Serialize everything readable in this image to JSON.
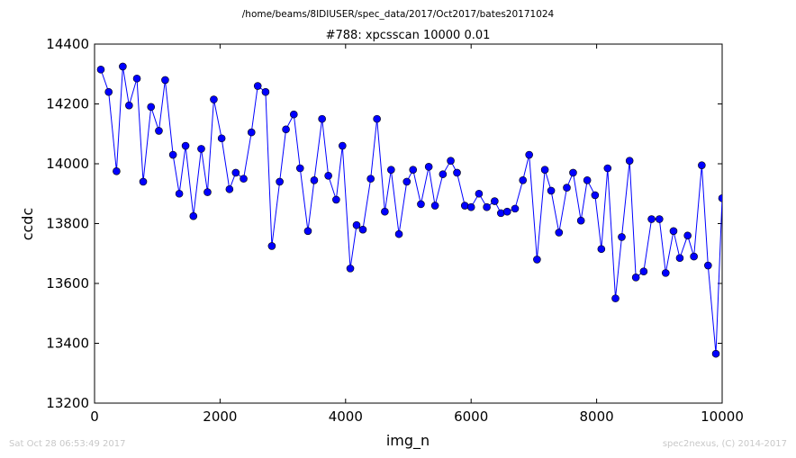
{
  "header": {
    "path": "/home/beams/8IDIUSER/spec_data/2017/Oct2017/bates20171024"
  },
  "footer": {
    "timestamp": "Sat Oct 28 06:53:49 2017",
    "credit": "spec2nexus, (C) 2014-2017"
  },
  "chart_data": {
    "type": "line",
    "title": "#788: xpcsscan 10000 0.01",
    "xlabel": "img_n",
    "ylabel": "ccdc",
    "xlim": [
      0,
      10000
    ],
    "ylim": [
      13200,
      14400
    ],
    "xticks": [
      0,
      2000,
      4000,
      6000,
      8000,
      10000
    ],
    "yticks": [
      13200,
      13400,
      13600,
      13800,
      14000,
      14200,
      14400
    ],
    "grid": false,
    "legend": "none",
    "colors": {
      "line": "#0000ff",
      "marker": "#0000ff"
    },
    "series": [
      {
        "x": [
          100,
          225,
          350,
          450,
          550,
          675,
          775,
          900,
          1025,
          1125,
          1250,
          1350,
          1450,
          1575,
          1700,
          1800,
          1900,
          2025,
          2150,
          2250,
          2375,
          2500,
          2600,
          2725,
          2825,
          2950,
          3050,
          3175,
          3275,
          3400,
          3500,
          3625,
          3725,
          3850,
          3950,
          4075,
          4175,
          4275,
          4400,
          4500,
          4625,
          4725,
          4850,
          4975,
          5075,
          5200,
          5325,
          5425,
          5550,
          5675,
          5775,
          5900,
          6000,
          6125,
          6250,
          6375,
          6475,
          6575,
          6700,
          6825,
          6925,
          7050,
          7175,
          7275,
          7400,
          7525,
          7625,
          7750,
          7850,
          7975,
          8075,
          8175,
          8300,
          8400,
          8525,
          8625,
          8750,
          8875,
          9000,
          9100,
          9225,
          9325,
          9450,
          9550,
          9675,
          9775,
          9900,
          10000
        ],
        "values": [
          14315,
          14240,
          13975,
          14325,
          14195,
          14285,
          13940,
          14190,
          14110,
          14280,
          14030,
          13900,
          14060,
          13825,
          14050,
          13905,
          14215,
          14085,
          13915,
          13970,
          13950,
          14105,
          14260,
          14240,
          13725,
          13940,
          14115,
          14165,
          13985,
          13775,
          13945,
          14150,
          13960,
          13880,
          14060,
          13650,
          13795,
          13780,
          13950,
          14150,
          13840,
          13980,
          13765,
          13940,
          13980,
          13865,
          13990,
          13860,
          13965,
          14010,
          13970,
          13860,
          13855,
          13900,
          13855,
          13875,
          13835,
          13840,
          13850,
          13945,
          14030,
          13680,
          13980,
          13910,
          13770,
          13920,
          13970,
          13810,
          13945,
          13895,
          13715,
          13985,
          13550,
          13755,
          14010,
          13620,
          13640,
          13815,
          13815,
          13635,
          13775,
          13685,
          13760,
          13690,
          13995,
          13660,
          13365,
          13885
        ]
      }
    ]
  }
}
